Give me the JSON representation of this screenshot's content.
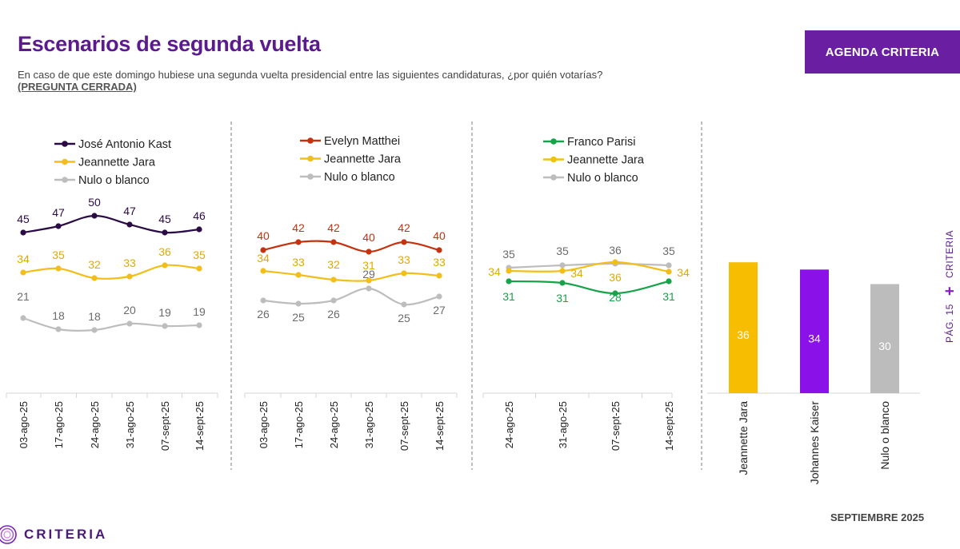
{
  "header": {
    "title": "Escenarios de segunda vuelta",
    "subtitle": "En caso de que este domingo hubiese una segunda vuelta presidencial entre las siguientes candidaturas, ¿por quién votarías?",
    "subtitle_tag": "(PREGUNTA CERRADA)",
    "badge": "AGENDA CRITERIA"
  },
  "sidebar": {
    "brand": "CRITERIA",
    "page": "PÁG. 15"
  },
  "footer": {
    "date": "SEPTIEMBRE 2025",
    "logo": "CRITERIA",
    "logo_icon": "criteria-rings-icon"
  },
  "colors": {
    "kast": "#2a0b45",
    "jara": "#f2be1a",
    "nulo": "#bdbdbd",
    "matthei": "#c4320f",
    "parisi": "#17a34a",
    "kaiser": "#8a12e8",
    "brand": "#5b1b8e"
  },
  "chart_data": [
    {
      "type": "line",
      "categories": [
        "03-ago-25",
        "17-ago-25",
        "24-ago-25",
        "31-ago-25",
        "07-sept-25",
        "14-sept-25"
      ],
      "series": [
        {
          "name": "José Antonio Kast",
          "color": "#2a0b45",
          "values": [
            45,
            47,
            50,
            47,
            45,
            46
          ]
        },
        {
          "name": "Jeannette Jara",
          "color": "#f2be1a",
          "values": [
            34,
            35,
            32,
            33,
            36,
            35
          ]
        },
        {
          "name": "Nulo o blanco",
          "color": "#bdbdbd",
          "values": [
            21,
            18,
            18,
            20,
            19,
            19
          ]
        }
      ],
      "legend": "top"
    },
    {
      "type": "line",
      "categories": [
        "03-ago-25",
        "17-ago-25",
        "24-ago-25",
        "31-ago-25",
        "07-sept-25",
        "14-sept-25"
      ],
      "series": [
        {
          "name": "Evelyn Matthei",
          "color": "#c4320f",
          "values": [
            40,
            42,
            42,
            40,
            42,
            40
          ]
        },
        {
          "name": "Jeannette Jara",
          "color": "#f2be1a",
          "values": [
            34,
            33,
            32,
            31,
            33,
            33
          ]
        },
        {
          "name": "Nulo o blanco",
          "color": "#bdbdbd",
          "values": [
            26,
            25,
            26,
            29,
            25,
            27
          ]
        }
      ],
      "legend": "top"
    },
    {
      "type": "line",
      "categories": [
        "24-ago-25",
        "31-ago-25",
        "07-sept-25",
        "14-sept-25"
      ],
      "series": [
        {
          "name": "Franco Parisi",
          "color": "#17a34a",
          "values": [
            31,
            31,
            28,
            31
          ]
        },
        {
          "name": "Jeannette Jara",
          "color": "#f2be1a",
          "values": [
            34,
            34,
            36,
            34
          ]
        },
        {
          "name": "Nulo o blanco",
          "color": "#bdbdbd",
          "values": [
            35,
            35,
            36,
            35
          ]
        }
      ],
      "legend": "top"
    },
    {
      "type": "bar",
      "categories": [
        "Jeannette Jara",
        "Johannes Kaiser",
        "Nulo o blanco"
      ],
      "values": [
        36,
        34,
        30
      ],
      "colors": [
        "#f7bd00",
        "#8a12e8",
        "#bcbcbc"
      ]
    }
  ]
}
